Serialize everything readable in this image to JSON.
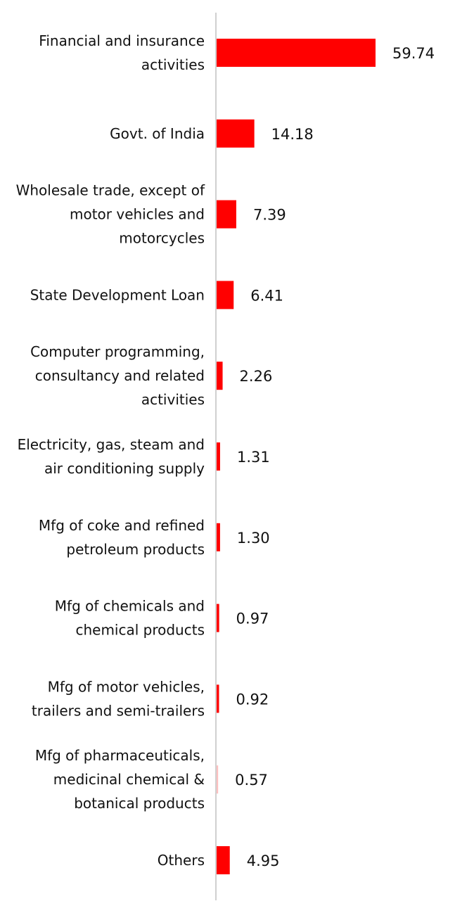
{
  "chart_data": {
    "type": "bar",
    "orientation": "horizontal",
    "categories": [
      [
        "Financial and insurance",
        "activities"
      ],
      [
        "Govt. of India"
      ],
      [
        "Wholesale trade, except of",
        "motor vehicles and",
        "motorcycles"
      ],
      [
        "State Development Loan"
      ],
      [
        "Computer programming,",
        "consultancy and related",
        "activities"
      ],
      [
        "Electricity, gas, steam and",
        "air conditioning supply"
      ],
      [
        "Mfg of coke and refined",
        "petroleum products"
      ],
      [
        "Mfg of chemicals and",
        "chemical products"
      ],
      [
        "Mfg of motor vehicles,",
        "trailers and semi-trailers"
      ],
      [
        "Mfg of pharmaceuticals,",
        "medicinal chemical &",
        "botanical products"
      ],
      [
        "Others"
      ]
    ],
    "values": [
      59.74,
      14.18,
      7.39,
      6.41,
      2.26,
      1.31,
      1.3,
      0.97,
      0.92,
      0.57,
      4.95
    ],
    "value_labels": [
      "59.74",
      "14.18",
      "7.39",
      "6.41",
      "2.26",
      "1.31",
      "1.30",
      "0.97",
      "0.92",
      "0.57",
      "4.95"
    ],
    "title": "",
    "xlabel": "",
    "ylabel": "",
    "grid": false,
    "legend": "none",
    "bar_color": "#ff0000",
    "axis_color": "#d0d0d0"
  }
}
